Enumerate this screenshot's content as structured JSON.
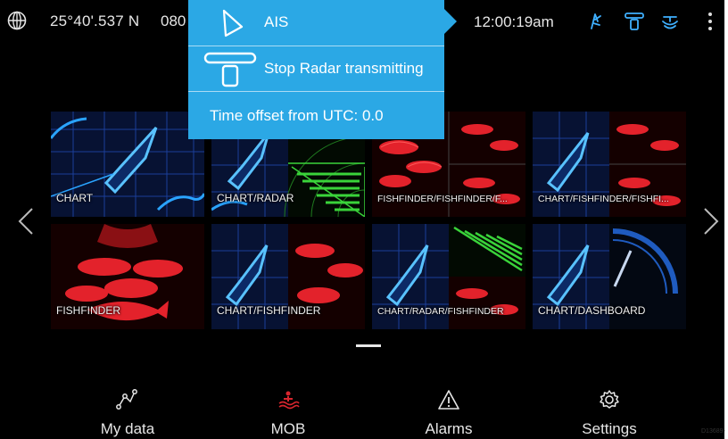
{
  "status_bar": {
    "latitude": "25°40'.537 N",
    "longitude_partial": "080",
    "time": "12:00:19am",
    "icons": [
      "globe-icon",
      "ais-status-icon",
      "radar-status-icon",
      "sonar-status-icon",
      "more-options-icon"
    ]
  },
  "dropdown": {
    "items": [
      {
        "label": "AIS",
        "icon": "ais-triangle-icon"
      },
      {
        "label": "Stop Radar transmitting",
        "icon": "radar-scanner-icon"
      },
      {
        "label": "Time offset from UTC: 0.0"
      }
    ],
    "color": "#2ba8e5"
  },
  "tiles": [
    {
      "label": "CHART",
      "type": "chart"
    },
    {
      "label": "CHART/RADAR",
      "type": "chart-radar"
    },
    {
      "label": "FISHFINDER/FISHFINDER/F...",
      "type": "fish-fish"
    },
    {
      "label": "CHART/FISHFINDER/FISHFI...",
      "type": "chart-fish-fish"
    },
    {
      "label": "FISHFINDER",
      "type": "fish"
    },
    {
      "label": "CHART/FISHFINDER",
      "type": "chart-fish"
    },
    {
      "label": "CHART/RADAR/FISHFINDER",
      "type": "chart-radar-fish"
    },
    {
      "label": "CHART/DASHBOARD",
      "type": "chart-dashboard"
    }
  ],
  "nav": {
    "items": [
      {
        "label": "My data",
        "icon": "my-data-icon"
      },
      {
        "label": "MOB",
        "icon": "mob-icon",
        "color": "#d8262e"
      },
      {
        "label": "Alarms",
        "icon": "alarm-triangle-icon"
      },
      {
        "label": "Settings",
        "icon": "gear-icon"
      }
    ]
  },
  "colors": {
    "chart_blue": "#2aa4ff",
    "fish_red": "#e3222b",
    "radar_green": "#3ad33a"
  },
  "figure_code": "D13689-"
}
